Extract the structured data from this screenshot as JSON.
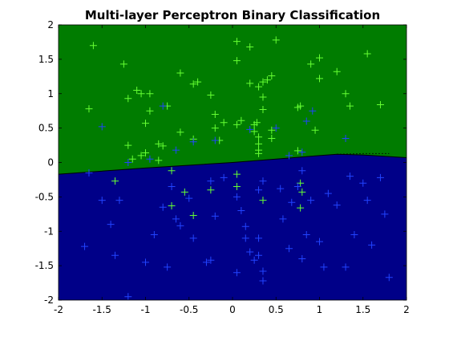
{
  "chart_data": {
    "type": "scatter",
    "title": "Multi-layer Perceptron Binary Classification",
    "xlabel": "",
    "ylabel": "",
    "xlim": [
      -2,
      2
    ],
    "ylim": [
      -2,
      2
    ],
    "grid": false,
    "xticks": [
      -2,
      -1.5,
      -1,
      -0.5,
      0,
      0.5,
      1,
      1.5,
      2
    ],
    "yticks": [
      -2,
      -1.5,
      -1,
      -0.5,
      0,
      0.5,
      1,
      1.5,
      2
    ],
    "xtick_labels": [
      "-2",
      "-1.5",
      "-1",
      "-0.5",
      "0",
      "0.5",
      "1",
      "1.5",
      "2"
    ],
    "ytick_labels": [
      "-2",
      "-1.5",
      "-1",
      "-0.5",
      "0",
      "0.5",
      "1",
      "1.5",
      "2"
    ],
    "colors": {
      "upper_region": "#007C00",
      "lower_region": "#000088",
      "class_green": "#66FF33",
      "class_blue": "#2244FF",
      "boundary": "#000000"
    },
    "regions": [
      {
        "class": "green",
        "position": "above boundary"
      },
      {
        "class": "blue",
        "position": "below boundary"
      }
    ],
    "boundary": {
      "x": [
        -2,
        -1,
        0,
        0.5,
        1,
        1.2,
        1.5,
        2
      ],
      "y": [
        -0.17,
        -0.08,
        0.0,
        0.05,
        0.1,
        0.12,
        0.11,
        0.07
      ]
    },
    "boundary_dotted": {
      "x": [
        1.2,
        1.5,
        1.8
      ],
      "y": [
        0.12,
        0.13,
        0.13
      ]
    },
    "series": [
      {
        "class": "green",
        "marker": "+",
        "points": [
          [
            -1.6,
            1.7
          ],
          [
            -1.25,
            1.43
          ],
          [
            -1.1,
            1.05
          ],
          [
            -1.05,
            1.0
          ],
          [
            -0.95,
            1.0
          ],
          [
            -0.6,
            1.3
          ],
          [
            -0.45,
            1.14
          ],
          [
            -0.4,
            1.17
          ],
          [
            -0.25,
            0.98
          ],
          [
            -0.2,
            0.7
          ],
          [
            -0.2,
            0.5
          ],
          [
            0.05,
            1.76
          ],
          [
            0.05,
            1.48
          ],
          [
            0.2,
            1.68
          ],
          [
            0.2,
            1.15
          ],
          [
            0.3,
            1.1
          ],
          [
            0.35,
            1.17
          ],
          [
            0.4,
            1.2
          ],
          [
            0.45,
            1.26
          ],
          [
            0.35,
            0.95
          ],
          [
            0.35,
            0.77
          ],
          [
            0.5,
            1.78
          ],
          [
            0.9,
            1.43
          ],
          [
            1.0,
            1.52
          ],
          [
            1.0,
            1.22
          ],
          [
            1.2,
            1.32
          ],
          [
            1.3,
            1.0
          ],
          [
            1.35,
            0.82
          ],
          [
            1.55,
            1.58
          ],
          [
            1.7,
            0.84
          ],
          [
            0.95,
            0.47
          ],
          [
            0.78,
            0.82
          ],
          [
            0.75,
            0.8
          ],
          [
            -1.65,
            0.78
          ],
          [
            -1.2,
            0.93
          ],
          [
            -1.0,
            0.57
          ],
          [
            -0.95,
            0.75
          ],
          [
            -1.0,
            0.14
          ],
          [
            -0.85,
            0.27
          ],
          [
            -0.75,
            0.82
          ],
          [
            -0.6,
            0.44
          ],
          [
            -0.45,
            0.34
          ],
          [
            -0.15,
            0.32
          ],
          [
            -0.1,
            0.58
          ],
          [
            0.05,
            0.55
          ],
          [
            0.1,
            0.61
          ],
          [
            0.25,
            0.45
          ],
          [
            0.25,
            0.55
          ],
          [
            0.28,
            0.58
          ],
          [
            0.3,
            0.37
          ],
          [
            0.3,
            0.27
          ],
          [
            0.3,
            0.18
          ],
          [
            0.3,
            0.13
          ],
          [
            0.45,
            0.35
          ],
          [
            0.45,
            0.47
          ],
          [
            -0.8,
            0.24
          ],
          [
            -0.85,
            0.03
          ],
          [
            -0.7,
            -0.12
          ],
          [
            -1.35,
            -0.27
          ],
          [
            -1.05,
            0.1
          ],
          [
            -1.2,
            0.25
          ],
          [
            -1.15,
            0.05
          ],
          [
            -0.55,
            -0.43
          ],
          [
            -0.45,
            -0.77
          ],
          [
            -0.7,
            -0.63
          ],
          [
            0.05,
            -0.17
          ],
          [
            0.05,
            -0.35
          ],
          [
            -0.25,
            -0.4
          ],
          [
            0.35,
            -0.55
          ],
          [
            0.78,
            -0.3
          ],
          [
            0.78,
            -0.66
          ],
          [
            0.8,
            -0.43
          ],
          [
            0.75,
            0.17
          ]
        ]
      },
      {
        "class": "blue",
        "marker": "+",
        "points": [
          [
            -1.5,
            0.52
          ],
          [
            -0.8,
            0.82
          ],
          [
            -0.45,
            0.3
          ],
          [
            -0.65,
            0.18
          ],
          [
            -0.2,
            0.32
          ],
          [
            0.2,
            0.48
          ],
          [
            0.5,
            0.5
          ],
          [
            0.85,
            0.6
          ],
          [
            0.92,
            0.75
          ],
          [
            1.3,
            0.35
          ],
          [
            0.65,
            0.1
          ],
          [
            0.8,
            0.15
          ],
          [
            -1.2,
            0.0
          ],
          [
            -0.95,
            0.05
          ],
          [
            -1.7,
            -1.22
          ],
          [
            -1.5,
            -0.55
          ],
          [
            -1.4,
            -0.9
          ],
          [
            -1.35,
            -1.35
          ],
          [
            -1.3,
            -0.55
          ],
          [
            -1.2,
            -1.95
          ],
          [
            -1.0,
            -1.45
          ],
          [
            -0.9,
            -1.05
          ],
          [
            -0.8,
            -0.65
          ],
          [
            -0.7,
            -0.35
          ],
          [
            -0.75,
            -1.52
          ],
          [
            -0.65,
            -0.82
          ],
          [
            -0.6,
            -0.92
          ],
          [
            -0.5,
            -0.52
          ],
          [
            -0.45,
            -1.1
          ],
          [
            -0.3,
            -1.45
          ],
          [
            -0.25,
            -1.42
          ],
          [
            -0.25,
            -0.27
          ],
          [
            -0.2,
            -0.78
          ],
          [
            -0.1,
            -0.22
          ],
          [
            0.05,
            -0.5
          ],
          [
            0.1,
            -0.7
          ],
          [
            0.15,
            -0.93
          ],
          [
            0.15,
            -1.1
          ],
          [
            0.2,
            -1.3
          ],
          [
            0.25,
            -1.42
          ],
          [
            0.3,
            -1.35
          ],
          [
            0.35,
            -1.58
          ],
          [
            0.3,
            -1.1
          ],
          [
            0.35,
            -0.27
          ],
          [
            0.55,
            -0.38
          ],
          [
            0.58,
            -0.82
          ],
          [
            0.68,
            -0.58
          ],
          [
            0.75,
            -0.35
          ],
          [
            0.8,
            -0.12
          ],
          [
            0.8,
            -1.4
          ],
          [
            0.9,
            -0.55
          ],
          [
            1.0,
            -1.15
          ],
          [
            1.05,
            -1.52
          ],
          [
            1.2,
            -0.62
          ],
          [
            1.3,
            -1.52
          ],
          [
            1.35,
            -0.2
          ],
          [
            1.4,
            -1.05
          ],
          [
            1.5,
            -0.3
          ],
          [
            1.55,
            -0.55
          ],
          [
            1.6,
            -1.2
          ],
          [
            1.75,
            -0.75
          ],
          [
            1.8,
            -1.67
          ],
          [
            1.7,
            -0.22
          ],
          [
            0.3,
            -0.4
          ],
          [
            0.65,
            -1.25
          ],
          [
            0.85,
            -1.05
          ],
          [
            0.05,
            -1.6
          ],
          [
            0.35,
            -1.72
          ],
          [
            1.1,
            -0.45
          ],
          [
            -1.65,
            -0.15
          ]
        ]
      }
    ]
  }
}
